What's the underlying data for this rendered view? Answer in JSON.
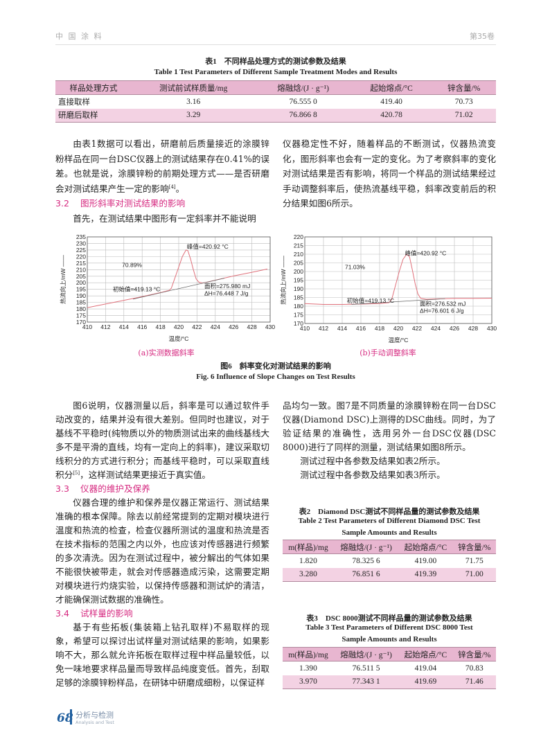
{
  "header": {
    "journal": "中 国 涂 料",
    "volume": "第35卷"
  },
  "table1": {
    "title_cn": "表1　不同样品处理方式的测试参数及结果",
    "title_en": "Table 1   Test Parameters of Different Sample Treatment Modes and Results",
    "headers": [
      "样品处理方式",
      "测试前试样质量/mg",
      "熔融焓/(J · g⁻¹)",
      "起始熔点/°C",
      "锌含量/%"
    ],
    "rows": [
      [
        "直接取样",
        "3.16",
        "76.555 0",
        "419.40",
        "70.73"
      ],
      [
        "研磨后取样",
        "3.29",
        "76.866 8",
        "420.78",
        "71.02"
      ]
    ]
  },
  "body1": {
    "left_p1": "由表1数据可以看出，研磨前后质量接近的涂膜锌粉样品在同一台DSC仪器上的测试结果存在0.41%的误差。也就是说，涂膜锌粉的前期处理方式——是否研磨会对测试结果产生一定的影响",
    "left_p1_ref": "[4]",
    "left_p1_end": "。",
    "sec32_num": "3.2",
    "sec32_title": "图形斜率对测试结果的影响",
    "left_p2": "首先，在测试结果中图形有一定斜率并不能说明",
    "right_p1": "仪器稳定性不好，随着样品的不断测试，仪器热流变化，图形斜率也会有一定的变化。为了考察斜率的变化对测试结果是否有影响，将同一个样品的测试结果经过手动调整斜率后，使热流基线平稳，斜率改变前后的积分结果如图6所示。"
  },
  "figure6": {
    "caption_cn": "图6　斜率变化对测试结果的影响",
    "caption_en": "Fig. 6   Influence of Slope Changes on Test Results"
  },
  "chart_data": [
    {
      "type": "line",
      "subcaption": "(a)实测数据斜率",
      "xlabel": "温度/°C",
      "ylabel": "热流向上/mW ——",
      "xlim": [
        410,
        430
      ],
      "ylim": [
        170,
        235
      ],
      "xticks": [
        410,
        412,
        414,
        416,
        418,
        420,
        422,
        424,
        426,
        428,
        430
      ],
      "yticks": [
        170,
        175,
        180,
        185,
        190,
        195,
        200,
        205,
        210,
        215,
        220,
        225,
        230,
        235
      ],
      "grid": true,
      "series": [
        {
          "x": [
            410,
            412,
            414,
            416,
            418,
            419,
            419.2,
            419.6,
            420,
            420.4,
            420.8,
            421,
            421.3,
            421.6,
            421.9,
            422.2,
            422.6,
            423,
            424,
            426,
            428,
            429.7
          ],
          "y": [
            181,
            183.8,
            186.6,
            189.4,
            192.5,
            194.3,
            196,
            204,
            212,
            220,
            225,
            224.5,
            218,
            210,
            203,
            200.5,
            199.8,
            200.3,
            202,
            205.2,
            208,
            210.5
          ]
        }
      ],
      "baseline": {
        "x": [
          415,
          425
        ],
        "y": [
          187.5,
          203.5
        ]
      },
      "annotations": {
        "peak": "峰值=420.92 °C",
        "percent": "70.89%",
        "onset": "初始值=419.13 °C",
        "area": "面积=275.980 mJ",
        "dh": "ΔH=76.448 7 J/g"
      }
    },
    {
      "type": "line",
      "subcaption": "(b)手动调整斜率",
      "xlabel": "温度/°C",
      "ylabel": "热流向上/mW ——",
      "xlim": [
        410,
        430
      ],
      "ylim": [
        170,
        220
      ],
      "xticks": [
        410,
        412,
        414,
        416,
        418,
        420,
        422,
        424,
        426,
        428,
        430
      ],
      "yticks": [
        170,
        175,
        180,
        185,
        190,
        195,
        200,
        205,
        210,
        215,
        220
      ],
      "grid": true,
      "series": [
        {
          "x": [
            410,
            412,
            414,
            416,
            418,
            419,
            419.3,
            419.7,
            420.1,
            420.5,
            420.9,
            421.2,
            421.5,
            421.8,
            422.1,
            422.4,
            423,
            424,
            426,
            428,
            430
          ],
          "y": [
            181.5,
            181,
            181,
            181.2,
            181.5,
            182,
            184,
            192,
            200,
            207,
            210,
            208.5,
            201,
            193,
            187,
            184.5,
            184,
            184.2,
            184.5,
            184.5,
            184.6
          ]
        }
      ],
      "baseline": {
        "x": [
          415,
          425
        ],
        "y": [
          181,
          184.3
        ]
      },
      "annotations": {
        "peak": "峰值=420.92 °C",
        "percent": "71.03%",
        "onset": "初始值=419.13 °C",
        "area": "面积=276.532 mJ",
        "dh": "ΔH=76.601 6 J/g"
      }
    }
  ],
  "body2": {
    "left_p1": "图6说明，仪器测量以后，斜率是可以通过软件手动改变的，结果并没有很大差别。但同时也建议，对于基线不平稳时(纯物质以外的物质测试出来的曲线基线大多不是平滑的直线，均有一定向上的斜率)，建议采取切线积分的方式进行积分；而基线平稳时，可以采取直线积分",
    "left_p1_ref": "[5]",
    "left_p1_end": "，这样测试结果更接近于真实值。",
    "sec33_num": "3.3",
    "sec33_title": "仪器的维护及保养",
    "left_p2": "仪器合理的维护和保养是仪器正常运行、测试结果准确的根本保障。除去以前经常提到的定期对模块进行温度和热流的检查，检查仪器所测试的温度和热流是否在技术指标的范围之内以外，也应该对传感器进行频繁的多次清洗。因为在测试过程中，被分解出的气体如果不能很快被带走，就会对传感器造成污染，这需要定期对模块进行灼烧实验，以保持传感器和测试炉的清洁，才能确保测试数据的准确性。",
    "sec34_num": "3.4",
    "sec34_title": "试样量的影响",
    "left_p3": "基于有些拓板(集装箱上钻孔取样)不易取样的现象，希望可以探讨出试样量对测试结果的影响，如果影响不大，那么就允许拓板在取样过程中样品量较低，以免一味地要求样品量而导致样品纯度变低。首先，刮取足够的涂膜锌粉样品，在研钵中研磨成细粉，以保证样",
    "right_p1": "品均匀一致。图7是不同质量的涂膜锌粉在同一台DSC仪器(Diamond DSC)上测得的DSC曲线。同时，为了验证结果的准确性，选用另外一台DSC仪器(DSC 8000)进行了同样的测量，测试结果如图8所示。",
    "right_p2": "测试过程中各参数及结果如表2所示。",
    "right_p3": "测试过程中各参数及结果如表3所示。"
  },
  "table2": {
    "title_cn": "表2　Diamond DSC测试不同样品量的测试参数及结果",
    "title_en1": "Table 2   Test Parameters of Different Diamond DSC Test",
    "title_en2": "Sample Amounts and Results",
    "headers": [
      "m(样品)/mg",
      "熔融焓/(J · g⁻¹)",
      "起始熔点/°C",
      "锌含量/%"
    ],
    "rows": [
      [
        "1.820",
        "78.325 6",
        "419.00",
        "71.75"
      ],
      [
        "3.280",
        "76.851 6",
        "419.39",
        "71.00"
      ]
    ]
  },
  "table3": {
    "title_cn": "表3　DSC 8000测试不同样品量的测试参数及结果",
    "title_en1": "Table 3   Test Parameters of Different DSC 8000 Test",
    "title_en2": "Sample Amounts and Results",
    "headers": [
      "m(样品)/mg",
      "熔融焓/(J · g⁻¹)",
      "起始熔点/°C",
      "锌含量/%"
    ],
    "rows": [
      [
        "1.390",
        "76.511 5",
        "419.04",
        "70.83"
      ],
      [
        "3.970",
        "77.343 1",
        "419.69",
        "71.46"
      ]
    ]
  },
  "footer": {
    "page": "68",
    "section_cn": "分析与检测",
    "section_en": "Analysis and Test"
  },
  "colors": {
    "accent": "#d62a80",
    "table_header": "#e8b6d0",
    "table_alt": "#f3d2e3",
    "curve": "#e0707a",
    "footer_blue": "#1f5e9e"
  }
}
